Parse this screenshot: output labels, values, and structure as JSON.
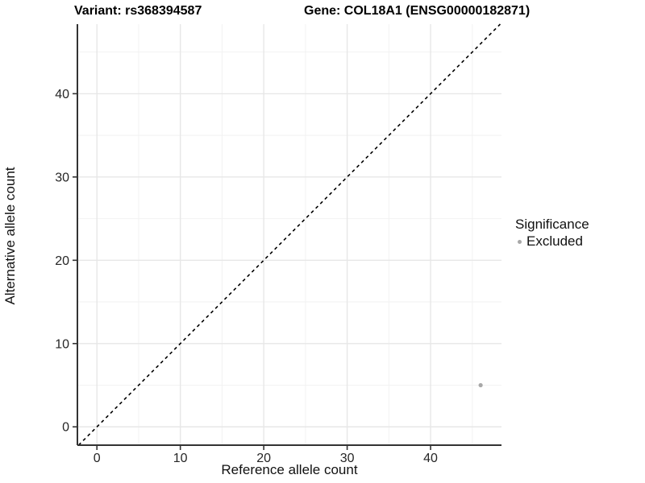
{
  "titles": {
    "left": "Variant: rs368394587",
    "right": "Gene: COL18A1 (ENSG00000182871)"
  },
  "chart_data": {
    "type": "scatter",
    "title": "Variant: rs368394587 / Gene: COL18A1 (ENSG00000182871)",
    "xlabel": "Reference allele count",
    "ylabel": "Alternative allele count",
    "xlim": [
      -2.34,
      48.5
    ],
    "ylim": [
      -2.2,
      48.35
    ],
    "major_ticks": [
      0,
      10,
      20,
      30,
      40
    ],
    "minor_ticks": [
      5,
      15,
      25,
      35,
      45
    ],
    "grid": "on",
    "series": [
      {
        "name": "Excluded",
        "points": [
          {
            "x": 46,
            "y": 5
          }
        ],
        "color": "#a8a8a8"
      }
    ],
    "reference_line": {
      "type": "identity",
      "slope": 1,
      "intercept": 0,
      "style": "dashed",
      "color": "#000000"
    },
    "legend": {
      "position": "right",
      "title": "Significance",
      "entries": [
        {
          "label": "Excluded",
          "color": "#a8a8a8"
        }
      ]
    },
    "colors": {
      "grid_major": "#e7e7e7",
      "grid_minor": "#f2f2f2",
      "axis_line": "#333333",
      "tick_label": "#262626",
      "point": "#a8a8a8"
    }
  }
}
